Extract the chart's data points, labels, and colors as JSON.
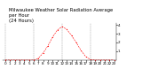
{
  "title": "Milwaukee Weather Solar Radiation Average\nper Hour\n(24 Hours)",
  "hours": [
    0,
    1,
    2,
    3,
    4,
    5,
    6,
    7,
    8,
    9,
    10,
    11,
    12,
    13,
    14,
    15,
    16,
    17,
    18,
    19,
    20,
    21,
    22,
    23
  ],
  "values": [
    0,
    0,
    0,
    0,
    0,
    0,
    0,
    20,
    80,
    160,
    260,
    340,
    380,
    350,
    280,
    200,
    110,
    40,
    5,
    0,
    0,
    0,
    0,
    0
  ],
  "ylim": [
    0,
    420
  ],
  "ytick_vals": [
    100,
    200,
    300,
    400
  ],
  "ytick_labels": [
    "1",
    "2",
    "3",
    "4"
  ],
  "vline_hours": [
    0,
    6,
    12,
    18
  ],
  "line_color": "#ff0000",
  "bg_color": "#ffffff",
  "grid_color": "#888888",
  "title_fontsize": 3.8,
  "tick_fontsize": 3.0,
  "ylabel_fontsize": 3.0
}
